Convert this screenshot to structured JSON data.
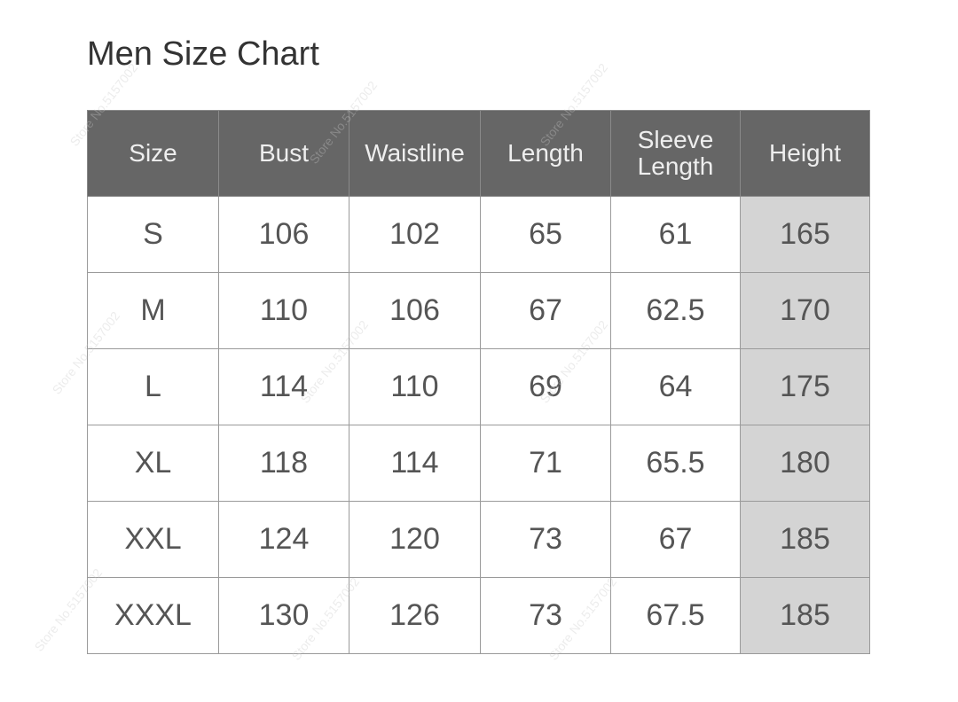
{
  "title": "Men Size Chart",
  "watermark": "Store No.5157002",
  "colors": {
    "header_bg": "#666666",
    "header_text": "#eeeeee",
    "highlight_column_bg": "#d4d4d4",
    "cell_text": "#555555"
  },
  "table": {
    "headers": [
      "Size",
      "Bust",
      "Waistline",
      "Length",
      "Sleeve Length",
      "Height"
    ],
    "rows": [
      [
        "S",
        "106",
        "102",
        "65",
        "61",
        "165"
      ],
      [
        "M",
        "110",
        "106",
        "67",
        "62.5",
        "170"
      ],
      [
        "L",
        "114",
        "110",
        "69",
        "64",
        "175"
      ],
      [
        "XL",
        "118",
        "114",
        "71",
        "65.5",
        "180"
      ],
      [
        "XXL",
        "124",
        "120",
        "73",
        "67",
        "185"
      ],
      [
        "XXXL",
        "130",
        "126",
        "73",
        "67.5",
        "185"
      ]
    ]
  }
}
